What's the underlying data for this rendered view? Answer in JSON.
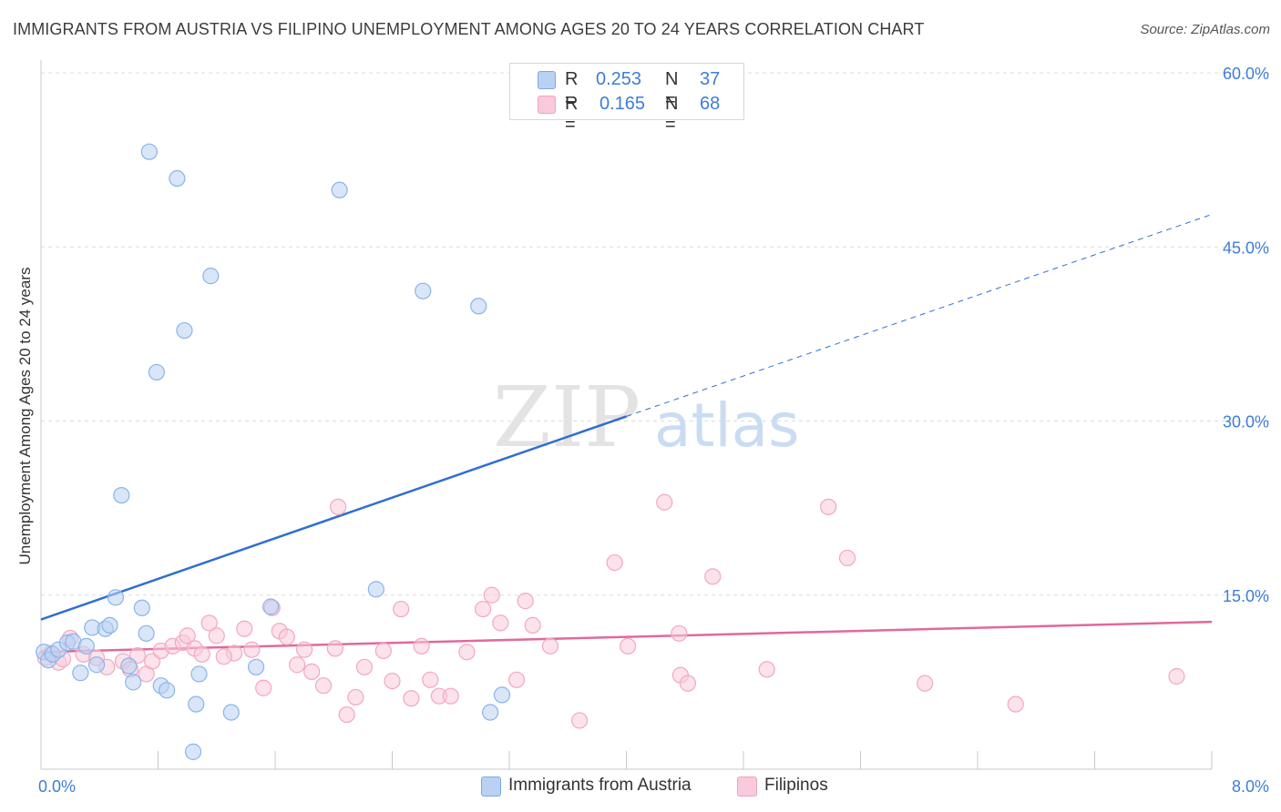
{
  "chart_data": {
    "type": "scatter",
    "title": "IMMIGRANTS FROM AUSTRIA VS FILIPINO UNEMPLOYMENT AMONG AGES 20 TO 24 YEARS CORRELATION CHART",
    "source": "Source: ZipAtlas.com",
    "xlabel": "",
    "ylabel": "Unemployment Among Ages 20 to 24 years",
    "xlim": [
      0,
      8
    ],
    "ylim": [
      0,
      60
    ],
    "x_tick_labels": [
      {
        "value": 0,
        "label": "0.0%"
      },
      {
        "value": 8,
        "label": "8.0%"
      }
    ],
    "y_tick_labels": [
      {
        "value": 15,
        "label": "15.0%"
      },
      {
        "value": 30,
        "label": "30.0%"
      },
      {
        "value": 45,
        "label": "45.0%"
      },
      {
        "value": 60,
        "label": "60.0%"
      }
    ],
    "grid": true,
    "watermark": {
      "zip": "ZIP",
      "atlas": "atlas"
    },
    "legend": {
      "r_label": "R =",
      "n_label": "N ="
    },
    "series": [
      {
        "name": "Immigrants from Austria",
        "r": "0.253",
        "n": "37",
        "color": "#8ab4ea",
        "fill": "#b9d2f3",
        "line_color": "#2f6fd1",
        "trend": {
          "x0": 0,
          "y0": 12.9,
          "x1": 4.0,
          "y1": 30.4,
          "x_dash_end": 8.0,
          "y_dash_end": 47.8
        },
        "points": [
          [
            0.02,
            10.1
          ],
          [
            0.05,
            9.4
          ],
          [
            0.08,
            9.9
          ],
          [
            0.12,
            10.3
          ],
          [
            0.18,
            10.9
          ],
          [
            0.22,
            11.0
          ],
          [
            0.27,
            8.3
          ],
          [
            0.31,
            10.6
          ],
          [
            0.35,
            12.2
          ],
          [
            0.38,
            9.0
          ],
          [
            0.44,
            12.1
          ],
          [
            0.47,
            12.4
          ],
          [
            0.51,
            14.8
          ],
          [
            0.55,
            23.6
          ],
          [
            0.63,
            7.5
          ],
          [
            0.69,
            13.9
          ],
          [
            0.72,
            11.7
          ],
          [
            0.79,
            34.2
          ],
          [
            0.82,
            7.2
          ],
          [
            0.86,
            6.8
          ],
          [
            0.93,
            50.9
          ],
          [
            0.98,
            37.8
          ],
          [
            1.04,
            1.5
          ],
          [
            1.06,
            5.6
          ],
          [
            1.08,
            8.2
          ],
          [
            1.16,
            42.5
          ],
          [
            1.3,
            4.9
          ],
          [
            1.47,
            8.8
          ],
          [
            1.57,
            14.0
          ],
          [
            2.04,
            49.9
          ],
          [
            2.29,
            15.5
          ],
          [
            2.61,
            41.2
          ],
          [
            2.99,
            39.9
          ],
          [
            3.07,
            4.9
          ],
          [
            3.15,
            6.4
          ],
          [
            0.74,
            53.2
          ],
          [
            0.6,
            8.9
          ]
        ]
      },
      {
        "name": "Filipinos",
        "r": "0.165",
        "n": "68",
        "color": "#f3a8c0",
        "fill": "#f8cadb",
        "line_color": "#e0699b",
        "trend": {
          "x0": 0,
          "y0": 10.1,
          "x1": 8.0,
          "y1": 12.7
        },
        "points": [
          [
            0.03,
            9.6
          ],
          [
            0.07,
            10.0
          ],
          [
            0.12,
            9.2
          ],
          [
            0.2,
            11.3
          ],
          [
            0.29,
            9.9
          ],
          [
            0.38,
            9.6
          ],
          [
            0.45,
            8.8
          ],
          [
            0.56,
            9.3
          ],
          [
            0.61,
            8.6
          ],
          [
            0.66,
            9.8
          ],
          [
            0.72,
            8.2
          ],
          [
            0.76,
            9.3
          ],
          [
            0.82,
            10.2
          ],
          [
            0.9,
            10.6
          ],
          [
            0.97,
            10.9
          ],
          [
            1.0,
            11.5
          ],
          [
            1.05,
            10.4
          ],
          [
            1.1,
            9.9
          ],
          [
            1.15,
            12.6
          ],
          [
            1.2,
            11.5
          ],
          [
            1.32,
            10.0
          ],
          [
            1.39,
            12.1
          ],
          [
            1.44,
            10.3
          ],
          [
            1.52,
            7.0
          ],
          [
            1.58,
            13.9
          ],
          [
            1.63,
            11.9
          ],
          [
            1.68,
            11.4
          ],
          [
            1.75,
            9.0
          ],
          [
            1.8,
            10.3
          ],
          [
            1.85,
            8.4
          ],
          [
            1.93,
            7.2
          ],
          [
            2.01,
            10.4
          ],
          [
            2.03,
            22.6
          ],
          [
            2.09,
            4.7
          ],
          [
            2.15,
            6.2
          ],
          [
            2.21,
            8.8
          ],
          [
            2.34,
            10.2
          ],
          [
            2.4,
            7.6
          ],
          [
            2.46,
            13.8
          ],
          [
            2.53,
            6.1
          ],
          [
            2.6,
            10.6
          ],
          [
            2.66,
            7.7
          ],
          [
            2.72,
            6.3
          ],
          [
            2.8,
            6.3
          ],
          [
            3.02,
            13.8
          ],
          [
            3.08,
            15.0
          ],
          [
            3.14,
            12.6
          ],
          [
            3.25,
            7.7
          ],
          [
            3.31,
            14.5
          ],
          [
            3.36,
            12.4
          ],
          [
            3.48,
            10.6
          ],
          [
            3.68,
            4.2
          ],
          [
            3.92,
            17.8
          ],
          [
            4.01,
            10.6
          ],
          [
            4.26,
            23.0
          ],
          [
            4.36,
            11.7
          ],
          [
            4.37,
            8.1
          ],
          [
            4.42,
            7.4
          ],
          [
            4.59,
            16.6
          ],
          [
            4.96,
            8.6
          ],
          [
            5.38,
            22.6
          ],
          [
            5.51,
            18.2
          ],
          [
            6.04,
            7.4
          ],
          [
            6.66,
            5.6
          ],
          [
            7.76,
            8.0
          ],
          [
            2.91,
            10.1
          ],
          [
            0.15,
            9.5
          ],
          [
            1.25,
            9.7
          ]
        ]
      }
    ]
  }
}
